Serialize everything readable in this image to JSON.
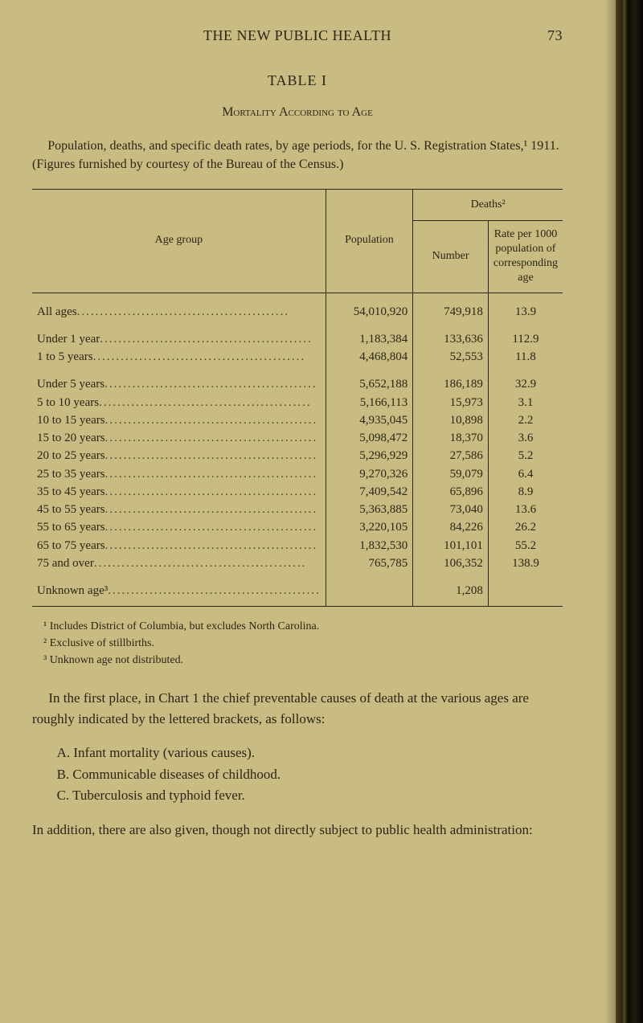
{
  "page": {
    "running_head": "THE NEW PUBLIC HEALTH",
    "number": "73"
  },
  "table": {
    "title": "TABLE I",
    "subtitle": "Mortality According to Age",
    "intro": "Population, deaths, and specific death rates, by age periods, for the U. S. Registration States,¹ 1911.  (Figures furnished by courtesy of the Bureau of the Census.)",
    "head": {
      "age_group": "Age group",
      "population": "Population",
      "deaths": "Deaths²",
      "number": "Number",
      "rate": "Rate per 1000 population of corresponding age"
    },
    "rows_main": [
      {
        "label": "All ages",
        "pop": "54,010,920",
        "num": "749,918",
        "rate": "13.9"
      }
    ],
    "rows_under": [
      {
        "label": "Under 1 year",
        "pop": "1,183,384",
        "num": "133,636",
        "rate": "112.9"
      },
      {
        "label": "1 to 5 years",
        "pop": "4,468,804",
        "num": "52,553",
        "rate": "11.8"
      }
    ],
    "rows_bands": [
      {
        "label": "Under 5 years",
        "pop": "5,652,188",
        "num": "186,189",
        "rate": "32.9"
      },
      {
        "label": "5 to 10 years",
        "pop": "5,166,113",
        "num": "15,973",
        "rate": "3.1"
      },
      {
        "label": "10 to 15 years",
        "pop": "4,935,045",
        "num": "10,898",
        "rate": "2.2"
      },
      {
        "label": "15 to 20 years",
        "pop": "5,098,472",
        "num": "18,370",
        "rate": "3.6"
      },
      {
        "label": "20 to 25 years",
        "pop": "5,296,929",
        "num": "27,586",
        "rate": "5.2"
      },
      {
        "label": "25 to 35 years",
        "pop": "9,270,326",
        "num": "59,079",
        "rate": "6.4"
      },
      {
        "label": "35 to 45 years",
        "pop": "7,409,542",
        "num": "65,896",
        "rate": "8.9"
      },
      {
        "label": "45 to 55 years",
        "pop": "5,363,885",
        "num": "73,040",
        "rate": "13.6"
      },
      {
        "label": "55 to 65 years",
        "pop": "3,220,105",
        "num": "84,226",
        "rate": "26.2"
      },
      {
        "label": "65 to 75 years",
        "pop": "1,832,530",
        "num": "101,101",
        "rate": "55.2"
      },
      {
        "label": "75 and over",
        "pop": "765,785",
        "num": "106,352",
        "rate": "138.9"
      }
    ],
    "rows_unknown": [
      {
        "label": "Unknown age³",
        "pop": "",
        "num": "1,208",
        "rate": ""
      }
    ]
  },
  "footnotes": {
    "f1": "¹ Includes District of Columbia, but excludes North Carolina.",
    "f2": "² Exclusive of stillbirths.",
    "f3": "³ Unknown age not distributed."
  },
  "body": {
    "para1": "In the first place, in Chart 1 the chief preventable causes of death at the various ages are roughly indicated by the lettered brackets, as follows:",
    "A": "A. Infant mortality (various causes).",
    "B": "B. Communicable diseases of childhood.",
    "C": "C. Tuberculosis and typhoid fever.",
    "para2": "In addition, there are also given, though not directly subject to public health administration:"
  }
}
